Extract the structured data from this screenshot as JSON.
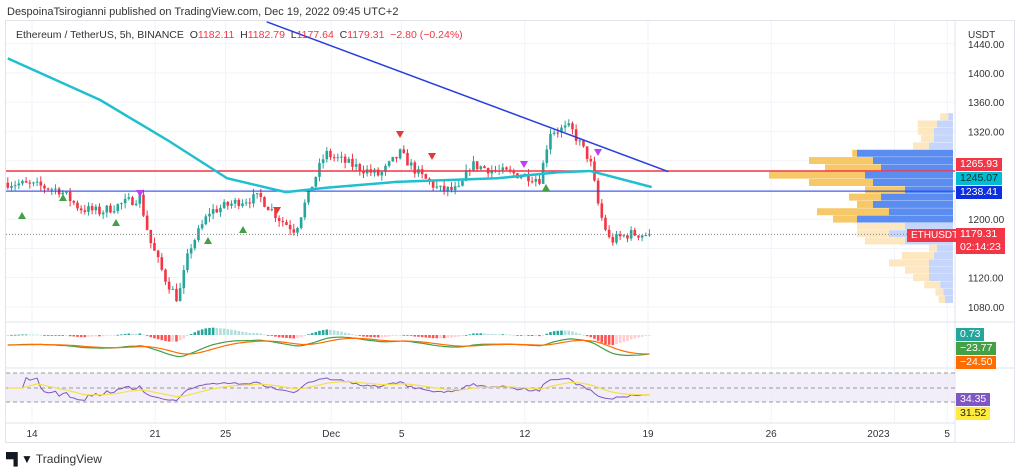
{
  "header": {
    "published": "DespoinaTsirogianni published on TradingView.com, Dec 19, 2022 09:45 UTC+2"
  },
  "legend": {
    "symbol": "Ethereum / TetherUS, 5h, BINANCE",
    "o_label": "O",
    "o": "1182.11",
    "h_label": "H",
    "h": "1182.79",
    "l_label": "L",
    "l": "1177.64",
    "c_label": "C",
    "c": "1179.31",
    "change": "−2.80 (−0.24%)"
  },
  "price_axis": {
    "unit": "USDT",
    "ticks": [
      "1440.00",
      "1400.00",
      "1360.00",
      "1320.00",
      "1200.00",
      "1120.00",
      "1080.00"
    ]
  },
  "price_tags": {
    "resistance": {
      "value": "1265.93",
      "color": "#f23645"
    },
    "ma": {
      "value": "1245.07",
      "color": "#00bcd4"
    },
    "support": {
      "value": "1238.41",
      "color": "#0d2fe0"
    },
    "last": {
      "symbol": "ETHUSDT",
      "value": "1179.31",
      "countdown": "02:14:23",
      "color": "#f23645"
    }
  },
  "macd_tags": [
    {
      "value": "0.73",
      "color": "#26a69a"
    },
    {
      "value": "−23.77",
      "color": "#43a047"
    },
    {
      "value": "−24.50",
      "color": "#ff6d00"
    }
  ],
  "rsi_tags": [
    {
      "value": "34.35",
      "color": "#7e57c2"
    },
    {
      "value": "31.52",
      "color": "#ffeb3b"
    }
  ],
  "time_axis": {
    "ticks": [
      "14",
      "21",
      "25",
      "Dec",
      "5",
      "12",
      "19",
      "26",
      "2023",
      "5"
    ]
  },
  "footer": {
    "brand": "TradingView"
  },
  "chart_data": {
    "type": "candlestick",
    "interval": "5h",
    "ylim": [
      1060,
      1450
    ],
    "price_path": [
      [
        "2022-11-12T15:00",
        1250
      ],
      [
        "2022-11-14T11:00",
        1245
      ],
      [
        "2022-11-15T14:00",
        1240
      ],
      [
        "2022-11-16T17:00",
        1215
      ],
      [
        "2022-11-17T21:00",
        1210
      ],
      [
        "2022-11-19T14:00",
        1225
      ],
      [
        "2022-11-20T03:00",
        1230
      ],
      [
        "2022-11-20T17:00",
        1170
      ],
      [
        "2022-11-21T13:00",
        1120
      ],
      [
        "2022-11-22T07:00",
        1090
      ],
      [
        "2022-11-22T23:00",
        1160
      ],
      [
        "2022-11-24T02:00",
        1210
      ],
      [
        "2022-11-25T19:00",
        1225
      ],
      [
        "2022-11-26T23:00",
        1230
      ],
      [
        "2022-11-28T02:00",
        1200
      ],
      [
        "2022-11-28T23:00",
        1185
      ],
      [
        "2022-11-29T19:00",
        1240
      ],
      [
        "2022-11-30T16:00",
        1290
      ],
      [
        "2022-12-02T02:00",
        1275
      ],
      [
        "2022-12-03T18:00",
        1260
      ],
      [
        "2022-12-04T22:00",
        1290
      ],
      [
        "2022-12-06T01:00",
        1260
      ],
      [
        "2022-12-07T04:00",
        1240
      ],
      [
        "2022-12-08T07:00",
        1240
      ],
      [
        "2022-12-08T22:00",
        1275
      ],
      [
        "2022-12-10T14:00",
        1265
      ],
      [
        "2022-12-12T00:00",
        1260
      ],
      [
        "2022-12-12T21:00",
        1255
      ],
      [
        "2022-12-13T10:00",
        1320
      ],
      [
        "2022-12-14T14:00",
        1325
      ],
      [
        "2022-12-15T17:00",
        1280
      ],
      [
        "2022-12-16T06:00",
        1210
      ],
      [
        "2022-12-16T20:00",
        1170
      ],
      [
        "2022-12-17T23:00",
        1180
      ],
      [
        "2022-12-19T05:00",
        1179.31
      ]
    ],
    "moving_average": [
      [
        "2022-11-12T15:00",
        1420
      ],
      [
        "2022-11-17T21:00",
        1363
      ],
      [
        "2022-11-21T17:00",
        1308
      ],
      [
        "2022-11-25T02:00",
        1256
      ],
      [
        "2022-11-28T10:00",
        1237
      ],
      [
        "2022-11-30T17:00",
        1243
      ],
      [
        "2022-12-04T17:00",
        1251
      ],
      [
        "2022-12-10T10:00",
        1256
      ],
      [
        "2022-12-13T20:00",
        1264
      ],
      [
        "2022-12-15T17:00",
        1266
      ],
      [
        "2022-12-19T05:00",
        1244
      ]
    ],
    "trendline": [
      [
        "2022-11-27T08:00",
        1470
      ],
      [
        "2022-12-20T04:00",
        1265
      ]
    ],
    "horizontal_levels": [
      1265.93,
      1238.41
    ],
    "last_price": 1179.31,
    "volume_profile": [
      [
        1340,
        0.05,
        0.03
      ],
      [
        1330,
        0.12,
        0.1
      ],
      [
        1320,
        0.1,
        0.12
      ],
      [
        1310,
        0.08,
        0.12
      ],
      [
        1300,
        0.1,
        0.15
      ],
      [
        1290,
        0.03,
        0.6
      ],
      [
        1280,
        0.4,
        0.5
      ],
      [
        1270,
        0.35,
        0.45
      ],
      [
        1260,
        0.6,
        0.55
      ],
      [
        1250,
        0.4,
        0.5
      ],
      [
        1240,
        0.25,
        0.3
      ],
      [
        1230,
        0.2,
        0.45
      ],
      [
        1220,
        0.1,
        0.5
      ],
      [
        1210,
        0.45,
        0.4
      ],
      [
        1200,
        0.15,
        0.6
      ],
      [
        1190,
        0.3,
        0.3
      ],
      [
        1180,
        0.2,
        0.4
      ],
      [
        1170,
        0.25,
        0.3
      ],
      [
        1160,
        0.05,
        0.1
      ],
      [
        1150,
        0.2,
        0.12
      ],
      [
        1140,
        0.25,
        0.15
      ],
      [
        1130,
        0.15,
        0.15
      ],
      [
        1120,
        0.1,
        0.15
      ],
      [
        1110,
        0.1,
        0.08
      ],
      [
        1100,
        0.05,
        0.06
      ],
      [
        1090,
        0.04,
        0.05
      ]
    ]
  }
}
